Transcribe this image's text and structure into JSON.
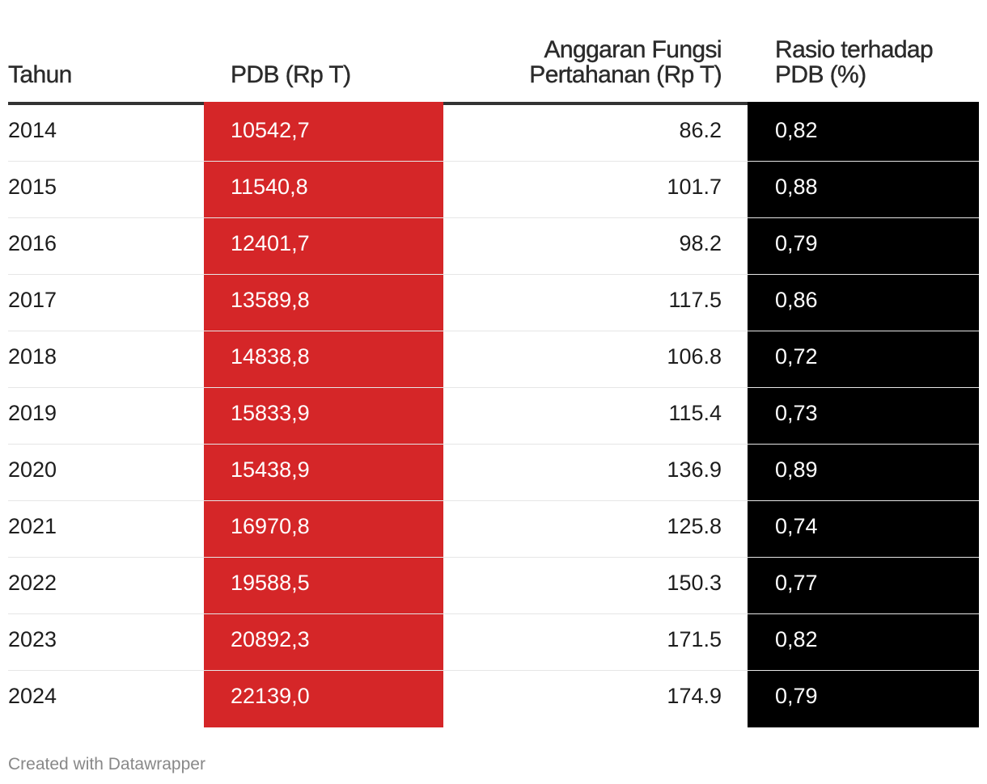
{
  "chart_data": {
    "type": "table",
    "columns": [
      "Tahun",
      "PDB (Rp T)",
      "Anggaran Fungsi Pertahanan (Rp T)",
      "Rasio terhadap PDB (%)"
    ],
    "rows": [
      {
        "year": "2014",
        "pdb": "10542,7",
        "budget": "86.2",
        "ratio": "0,82"
      },
      {
        "year": "2015",
        "pdb": "11540,8",
        "budget": "101.7",
        "ratio": "0,88"
      },
      {
        "year": "2016",
        "pdb": "12401,7",
        "budget": "98.2",
        "ratio": "0,79"
      },
      {
        "year": "2017",
        "pdb": "13589,8",
        "budget": "117.5",
        "ratio": "0,86"
      },
      {
        "year": "2018",
        "pdb": "14838,8",
        "budget": "106.8",
        "ratio": "0,72"
      },
      {
        "year": "2019",
        "pdb": "15833,9",
        "budget": "115.4",
        "ratio": "0,73"
      },
      {
        "year": "2020",
        "pdb": "15438,9",
        "budget": "136.9",
        "ratio": "0,89"
      },
      {
        "year": "2021",
        "pdb": "16970,8",
        "budget": "125.8",
        "ratio": "0,74"
      },
      {
        "year": "2022",
        "pdb": "19588,5",
        "budget": "150.3",
        "ratio": "0,77"
      },
      {
        "year": "2023",
        "pdb": "20892,3",
        "budget": "171.5",
        "ratio": "0,82"
      },
      {
        "year": "2024",
        "pdb": "22139,0",
        "budget": "174.9",
        "ratio": "0,79"
      }
    ],
    "highlight_colors": {
      "pdb_column": "#d52628",
      "ratio_column": "#000000"
    }
  },
  "header": {
    "year": "Tahun",
    "pdb": "PDB (Rp T)",
    "budget_line1": "Anggaran Fungsi",
    "budget_line2": "Pertahanan (Rp T)",
    "ratio_line1": "Rasio terhadap",
    "ratio_line2": "PDB (%)"
  },
  "footer": {
    "credit": "Created with Datawrapper"
  }
}
